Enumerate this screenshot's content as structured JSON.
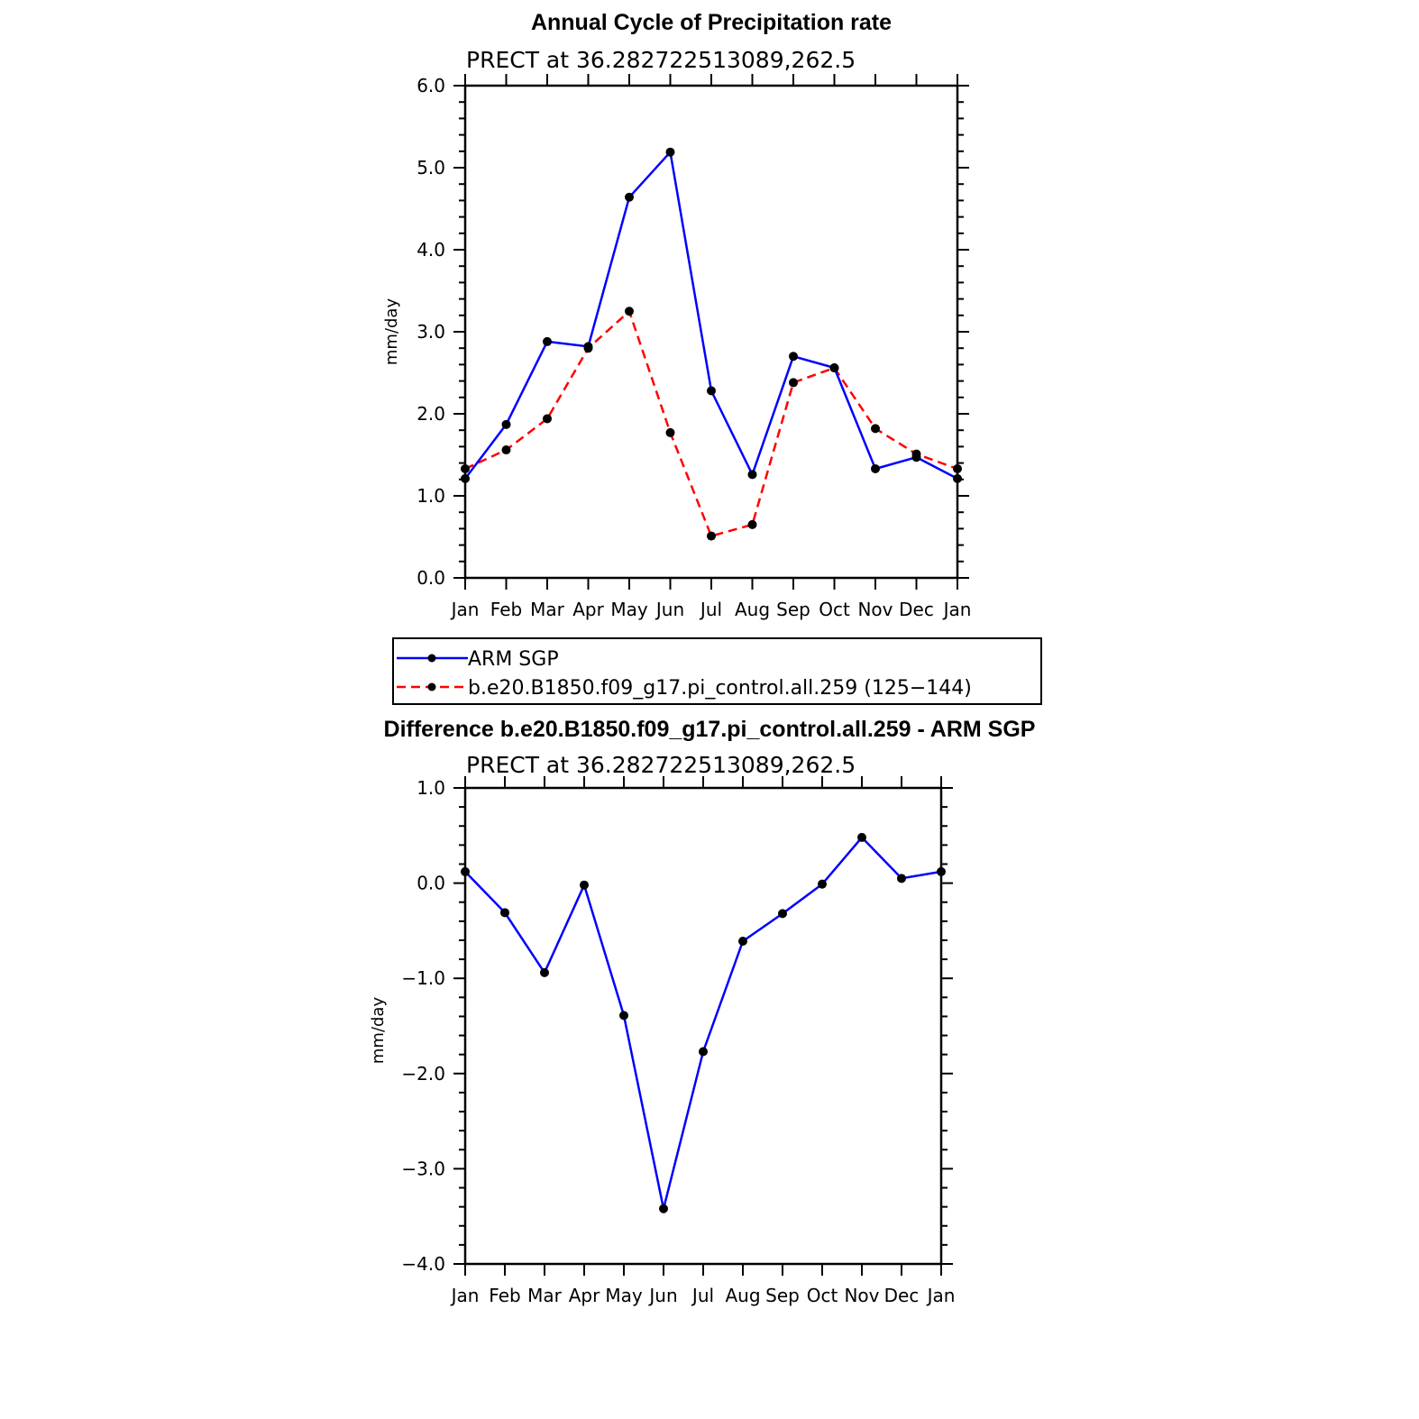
{
  "chart_data": [
    {
      "type": "line",
      "title": "Annual Cycle of Precipitation rate",
      "subtitle": "PRECT at 36.282722513089,262.5",
      "ylabel": "mm/day",
      "ylim": [
        0,
        6
      ],
      "yticks": [
        "0.0",
        "1.0",
        "2.0",
        "3.0",
        "4.0",
        "5.0",
        "6.0"
      ],
      "categories": [
        "Jan",
        "Feb",
        "Mar",
        "Apr",
        "May",
        "Jun",
        "Jul",
        "Aug",
        "Sep",
        "Oct",
        "Nov",
        "Dec",
        "Jan"
      ],
      "legend": "below",
      "series": [
        {
          "name": "ARM SGP",
          "color": "#0000ff",
          "style": "solid",
          "values": [
            1.21,
            1.87,
            2.88,
            2.82,
            4.64,
            5.19,
            2.28,
            1.26,
            2.7,
            2.56,
            1.33,
            1.47,
            1.21
          ]
        },
        {
          "name": "b.e20.B1850.f09_g17.pi_control.all.259 (125−144)",
          "color": "#ff0000",
          "style": "dashed",
          "values": [
            1.33,
            1.56,
            1.94,
            2.8,
            3.25,
            1.77,
            0.51,
            0.65,
            2.38,
            2.56,
            1.82,
            1.51,
            1.33
          ]
        }
      ]
    },
    {
      "type": "line",
      "title": "Difference b.e20.B1850.f09_g17.pi_control.all.259 - ARM SGP",
      "subtitle": "PRECT at 36.282722513089,262.5",
      "ylabel": "mm/day",
      "ylim": [
        -4,
        1
      ],
      "yticks": [
        "−4.0",
        "−3.0",
        "−2.0",
        "−1.0",
        "0.0",
        "1.0"
      ],
      "categories": [
        "Jan",
        "Feb",
        "Mar",
        "Apr",
        "May",
        "Jun",
        "Jul",
        "Aug",
        "Sep",
        "Oct",
        "Nov",
        "Dec",
        "Jan"
      ],
      "series": [
        {
          "color": "#0000ff",
          "style": "solid",
          "values": [
            0.12,
            -0.31,
            -0.94,
            -0.02,
            -1.39,
            -3.42,
            -1.77,
            -0.61,
            -0.32,
            -0.01,
            0.48,
            0.05,
            0.12
          ]
        }
      ]
    }
  ]
}
